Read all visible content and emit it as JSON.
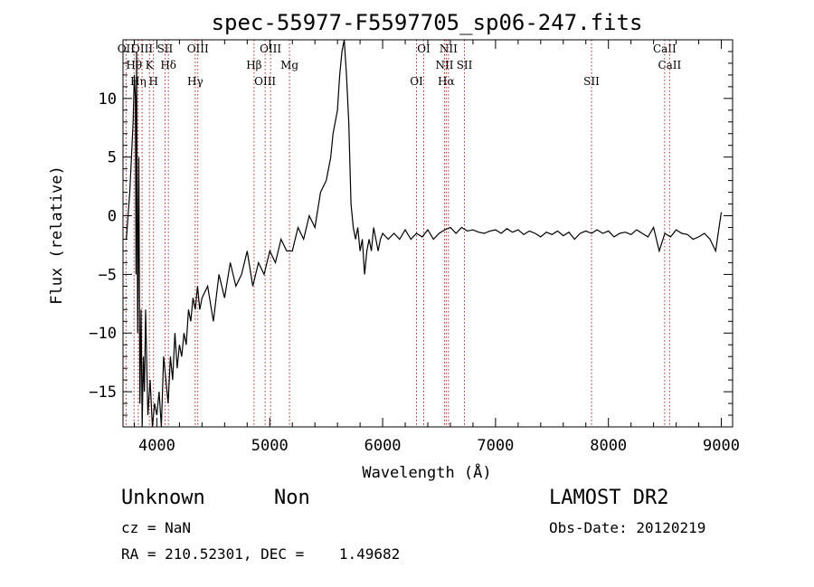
{
  "chart_data": {
    "type": "line",
    "title": "spec-55977-F5597705_sp06-247.fits",
    "xlabel": "Wavelength (Å)",
    "ylabel": "Flux (relative)",
    "xlim": [
      3700,
      9100
    ],
    "ylim": [
      -18,
      15
    ],
    "xticks": [
      4000,
      5000,
      6000,
      7000,
      8000,
      9000
    ],
    "xtick_labels": [
      "4000",
      "5000",
      "6000",
      "7000",
      "8000",
      "9000"
    ],
    "yticks": [
      10,
      5,
      0,
      -5,
      -10,
      -15
    ],
    "ytick_labels": [
      "10",
      "5",
      "0",
      "−5",
      "−10",
      "−15"
    ],
    "grid": false,
    "series": [
      {
        "x": [
          3730,
          3760,
          3790,
          3800,
          3810,
          3815,
          3820,
          3830,
          3840,
          3850,
          3860,
          3870,
          3880,
          3890,
          3900,
          3920,
          3940,
          3960,
          3980,
          4000,
          4020,
          4040,
          4060,
          4080,
          4100,
          4120,
          4140,
          4160,
          4180,
          4200,
          4220,
          4240,
          4260,
          4280,
          4300,
          4320,
          4340,
          4360,
          4380,
          4400,
          4450,
          4500,
          4550,
          4600,
          4650,
          4700,
          4750,
          4800,
          4850,
          4900,
          4950,
          5000,
          5050,
          5100,
          5150,
          5200,
          5250,
          5300,
          5350,
          5400,
          5450,
          5500,
          5520,
          5540,
          5560,
          5580,
          5600,
          5620,
          5640,
          5660,
          5680,
          5700,
          5720,
          5740,
          5760,
          5780,
          5800,
          5820,
          5840,
          5860,
          5880,
          5900,
          5920,
          5940,
          5960,
          5980,
          6000,
          6050,
          6100,
          6150,
          6200,
          6250,
          6300,
          6350,
          6400,
          6450,
          6500,
          6550,
          6600,
          6650,
          6700,
          6750,
          6800,
          6850,
          6900,
          6950,
          7000,
          7050,
          7100,
          7150,
          7200,
          7250,
          7300,
          7350,
          7400,
          7450,
          7500,
          7550,
          7600,
          7650,
          7700,
          7750,
          7800,
          7850,
          7900,
          7950,
          8000,
          8050,
          8100,
          8150,
          8200,
          8250,
          8300,
          8350,
          8400,
          8450,
          8500,
          8550,
          8600,
          8650,
          8700,
          8750,
          8800,
          8850,
          8900,
          8950,
          8980,
          9000
        ],
        "y": [
          -2,
          2,
          8,
          12,
          10,
          -5,
          14,
          -10,
          5,
          -16,
          -8,
          -18,
          -12,
          -15,
          -8,
          -17,
          -14,
          -18,
          -16,
          -17,
          -15,
          -18,
          -12,
          -14,
          -16,
          -12,
          -14,
          -10,
          -13,
          -11,
          -12,
          -10,
          -11,
          -8,
          -9,
          -7,
          -8,
          -6,
          -8,
          -7,
          -6,
          -9,
          -5,
          -7,
          -4,
          -6,
          -5,
          -3,
          -6,
          -4,
          -5,
          -3,
          -4,
          -2,
          -3,
          -3,
          -1,
          -2,
          0,
          -1,
          2,
          3,
          4,
          5,
          7,
          8,
          9,
          12,
          14,
          15,
          12,
          8,
          1,
          -1,
          -2,
          -1,
          -3,
          -2,
          -5,
          -3,
          -2,
          -3,
          -1,
          -2,
          -3,
          -2,
          -1.5,
          -2,
          -1.5,
          -2,
          -1.2,
          -2,
          -1.5,
          -1.8,
          -1.2,
          -2,
          -1.5,
          -1.2,
          -1,
          -1.5,
          -1,
          -1.3,
          -1.2,
          -1.4,
          -1.5,
          -1.3,
          -1.2,
          -1.5,
          -1.1,
          -1.4,
          -1.2,
          -1.6,
          -1.3,
          -1.5,
          -1.8,
          -1.4,
          -1.6,
          -1.3,
          -1.7,
          -1.4,
          -2,
          -1.5,
          -1.3,
          -1.5,
          -1.2,
          -1.5,
          -1.3,
          -1.8,
          -1.5,
          -1.4,
          -1.6,
          -1.2,
          -1.5,
          -1.8,
          -1,
          -3,
          -1.5,
          -1.8,
          -1.2,
          -1.5,
          -1.6,
          -2,
          -1.8,
          -1.5,
          -2,
          -3,
          -1,
          0.3
        ]
      }
    ],
    "lines": [
      {
        "wavelength": 3727,
        "labels": [
          "OII"
        ]
      },
      {
        "wavelength": 3798,
        "labels": [
          "Hθ"
        ]
      },
      {
        "wavelength": 3835,
        "labels": [
          "Hη"
        ]
      },
      {
        "wavelength": 3869,
        "labels": [
          "OIII"
        ]
      },
      {
        "wavelength": 3934,
        "labels": [
          "K"
        ]
      },
      {
        "wavelength": 3970,
        "labels": [
          "H"
        ]
      },
      {
        "wavelength": 4072,
        "labels": [
          "SII"
        ]
      },
      {
        "wavelength": 4102,
        "labels": [
          "Hδ"
        ]
      },
      {
        "wavelength": 4340,
        "labels": [
          "Hγ"
        ]
      },
      {
        "wavelength": 4363,
        "labels": [
          "OIII"
        ]
      },
      {
        "wavelength": 4861,
        "labels": [
          "Hβ"
        ]
      },
      {
        "wavelength": 4959,
        "labels": [
          "OIII"
        ]
      },
      {
        "wavelength": 5007,
        "labels": [
          "OIII"
        ]
      },
      {
        "wavelength": 5175,
        "labels": [
          "Mg"
        ]
      },
      {
        "wavelength": 6300,
        "labels": [
          "OI"
        ]
      },
      {
        "wavelength": 6364,
        "labels": [
          "OI"
        ]
      },
      {
        "wavelength": 6548,
        "labels": [
          "NII"
        ]
      },
      {
        "wavelength": 6563,
        "labels": [
          "Hα"
        ]
      },
      {
        "wavelength": 6583,
        "labels": [
          "NII"
        ]
      },
      {
        "wavelength": 6725,
        "labels": [
          "SII"
        ]
      },
      {
        "wavelength": 7850,
        "labels": [
          "SII"
        ]
      },
      {
        "wavelength": 8498,
        "labels": [
          "CaII"
        ]
      },
      {
        "wavelength": 8542,
        "labels": [
          "CaII"
        ]
      }
    ]
  },
  "info": {
    "class": "Unknown",
    "subclass": "Non",
    "survey": "LAMOST DR2",
    "cz": "cz = NaN",
    "obs_date": "Obs-Date: 20120219",
    "radec": "RA = 210.52301, DEC =    1.49682"
  },
  "colors": {
    "spectrum": "#000000",
    "line_markers": "#b22222"
  }
}
